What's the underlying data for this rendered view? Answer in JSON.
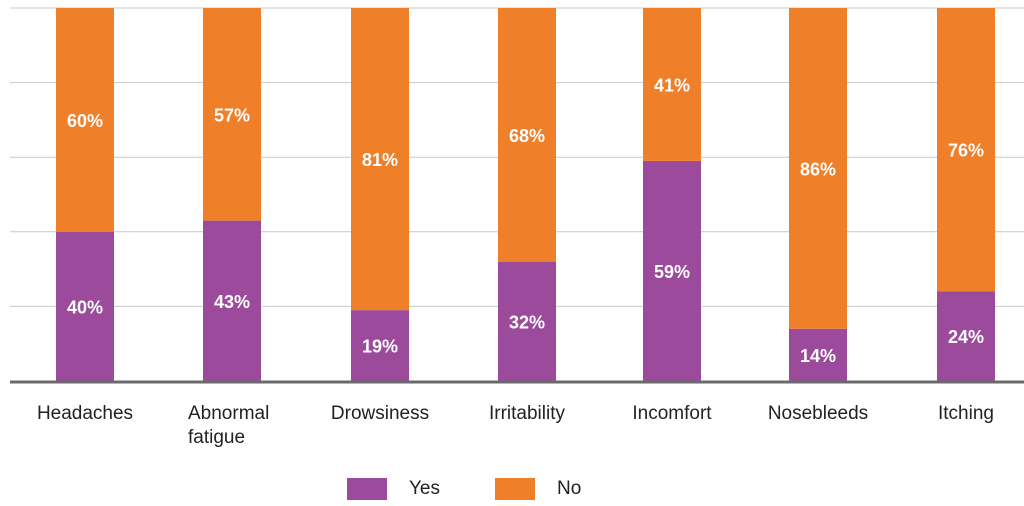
{
  "colors": {
    "yes": "#9b4a9c",
    "no": "#f07f2a",
    "grid": "#c9c9c9",
    "axis": "#6a6a6a"
  },
  "legend": {
    "yes": "Yes",
    "no": "No"
  },
  "chart_data": {
    "type": "bar",
    "stacked": true,
    "percent": true,
    "ylim": [
      0,
      100
    ],
    "grid": true,
    "legend_position": "bottom",
    "categories": [
      [
        "Headaches"
      ],
      [
        "Abnormal",
        "fatigue"
      ],
      [
        "Drowsiness"
      ],
      [
        "Irritability"
      ],
      [
        "Incomfort"
      ],
      [
        "Nosebleeds"
      ],
      [
        "Itching"
      ]
    ],
    "series": [
      {
        "name": "Yes",
        "values": [
          40,
          43,
          19,
          32,
          59,
          14,
          24
        ],
        "labels": [
          "40%",
          "43%",
          "19%",
          "32%",
          "59%",
          "14%",
          "24%"
        ]
      },
      {
        "name": "No",
        "values": [
          60,
          57,
          81,
          68,
          41,
          86,
          76
        ],
        "labels": [
          "60%",
          "57%",
          "81%",
          "68%",
          "41%",
          "86%",
          "76%"
        ]
      }
    ]
  }
}
